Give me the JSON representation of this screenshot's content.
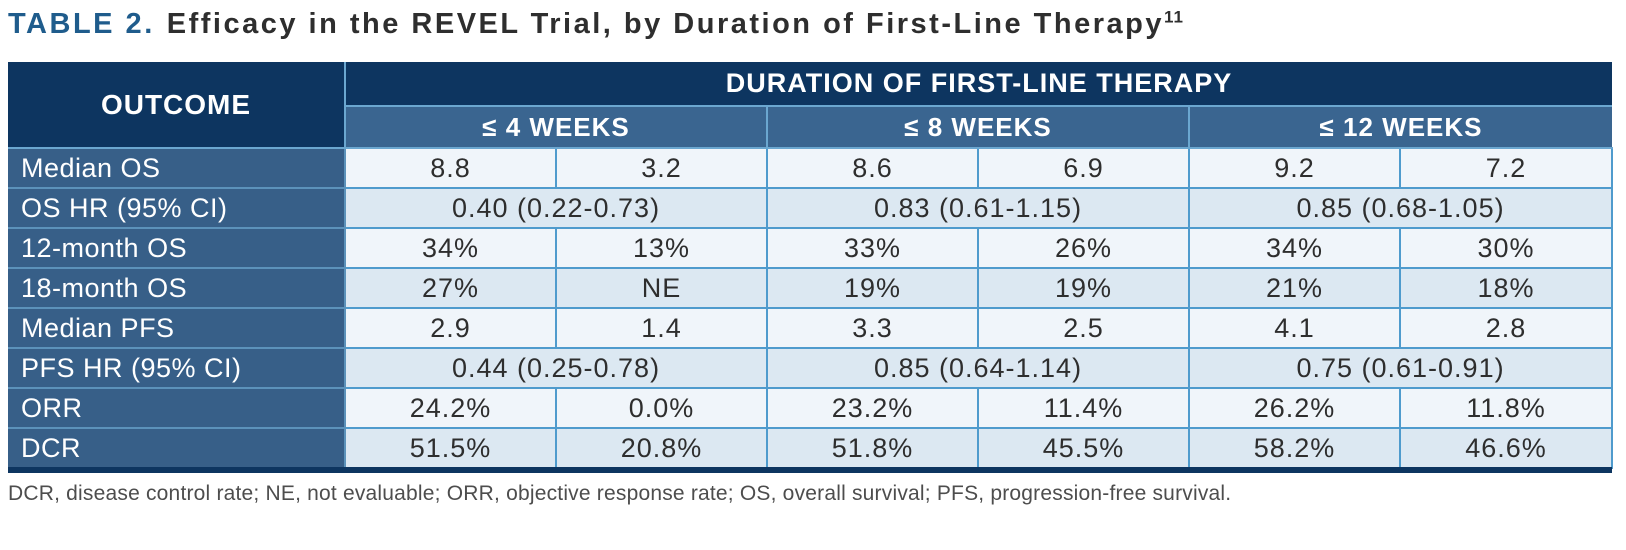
{
  "page": {
    "title": {
      "prefix": "TABLE 2.",
      "main": "Efficacy in the REVEL Trial, by Duration of First-Line Therapy",
      "citation": "11"
    },
    "footnote": "DCR, disease control rate; NE, not evaluable; ORR, objective response rate; OS, overall survival; PFS, progression-free survival."
  },
  "table": {
    "corner_header": "OUTCOME",
    "span_header": "DURATION OF FIRST-LINE THERAPY",
    "group_headers": [
      "≤ 4 WEEKS",
      "≤ 8 WEEKS",
      "≤ 12 WEEKS"
    ],
    "rows": [
      {
        "label": "Median OS",
        "type": "split",
        "values": [
          "8.8",
          "3.2",
          "8.6",
          "6.9",
          "9.2",
          "7.2"
        ]
      },
      {
        "label": "OS HR (95% CI)",
        "type": "merged",
        "values": [
          "0.40 (0.22-0.73)",
          "0.83 (0.61-1.15)",
          "0.85 (0.68-1.05)"
        ]
      },
      {
        "label": "12-month OS",
        "type": "split",
        "values": [
          "34%",
          "13%",
          "33%",
          "26%",
          "34%",
          "30%"
        ]
      },
      {
        "label": "18-month OS",
        "type": "split",
        "values": [
          "27%",
          "NE",
          "19%",
          "19%",
          "21%",
          "18%"
        ]
      },
      {
        "label": "Median PFS",
        "type": "split",
        "values": [
          "2.9",
          "1.4",
          "3.3",
          "2.5",
          "4.1",
          "2.8"
        ]
      },
      {
        "label": "PFS HR (95% CI)",
        "type": "merged",
        "values": [
          "0.44 (0.25-0.78)",
          "0.85 (0.64-1.14)",
          "0.75 (0.61-0.91)"
        ]
      },
      {
        "label": "ORR",
        "type": "split",
        "values": [
          "24.2%",
          "0.0%",
          "23.2%",
          "11.4%",
          "26.2%",
          "11.8%"
        ]
      },
      {
        "label": "DCR",
        "type": "split",
        "values": [
          "51.5%",
          "20.8%",
          "51.8%",
          "45.5%",
          "58.2%",
          "46.6%"
        ]
      }
    ]
  },
  "colors": {
    "header_navy": "#0d3560",
    "header_slate": "#3a6590",
    "label_slate": "#375f88",
    "row_light": "#f0f5fa",
    "row_shaded": "#dce8f2",
    "grid_blue": "#4f9bcd",
    "title_accent": "#1f5c8c",
    "body_text": "#2e2e2e",
    "footnote_gray": "#4d4d4d"
  }
}
